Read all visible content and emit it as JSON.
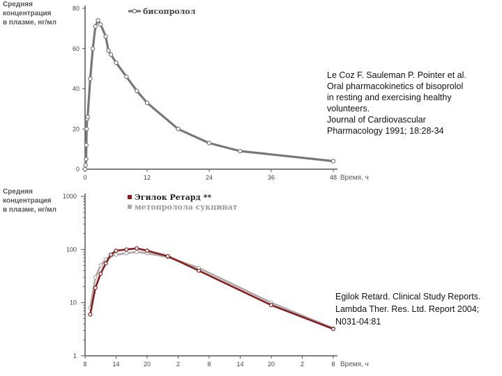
{
  "chart_data": [
    {
      "type": "line",
      "ylabel": [
        "Средняя",
        "концентрация",
        "в плазме, нг/мл"
      ],
      "xlabel": "Время, ч",
      "x_ticks": [
        0,
        12,
        24,
        36,
        48
      ],
      "y_ticks": [
        0,
        20,
        40,
        60,
        80
      ],
      "xlim": [
        0,
        48
      ],
      "ylim": [
        0,
        80
      ],
      "series": [
        {
          "name": "бисопролол",
          "color": "#777777",
          "x": [
            0,
            0.1,
            0.2,
            0.25,
            0.3,
            0.4,
            0.5,
            1,
            1.5,
            2,
            2.5,
            3,
            4,
            4.5,
            5,
            6,
            8,
            10,
            12,
            18,
            24,
            30,
            48
          ],
          "y": [
            0,
            2,
            5,
            12,
            20,
            25,
            26,
            45,
            60,
            71,
            74,
            72,
            66,
            59,
            57,
            53,
            46,
            39,
            33,
            20,
            13,
            9,
            4
          ]
        }
      ]
    },
    {
      "type": "line",
      "ylabel": [
        "Средняя",
        "концентрация",
        "в плазме, нг/мл"
      ],
      "xlabel": "Время, ч",
      "yscale": "log",
      "x_ticks": [
        "8",
        "14",
        "20",
        "2",
        "8",
        "14",
        "20",
        "2",
        "8"
      ],
      "y_ticks": [
        1,
        10,
        100,
        1000
      ],
      "xlim": [
        8,
        56
      ],
      "ylim": [
        1,
        1000
      ],
      "series": [
        {
          "name": "Эгилок Ретард **",
          "color": "#8b1a1a",
          "x": [
            9,
            10,
            11,
            12,
            13,
            14,
            16,
            18,
            20,
            24,
            30,
            44,
            56
          ],
          "y": [
            6,
            19,
            35,
            55,
            80,
            95,
            100,
            105,
            95,
            75,
            40,
            9,
            3.2
          ]
        },
        {
          "name": "метопролола сукцинат",
          "color": "#aaaaaa",
          "x": [
            9,
            10,
            11,
            12,
            13,
            14,
            16,
            18,
            20,
            24,
            30,
            44,
            56
          ],
          "y": [
            8,
            30,
            50,
            65,
            75,
            80,
            85,
            90,
            85,
            72,
            45,
            10,
            3.3
          ]
        }
      ]
    }
  ],
  "citations": {
    "top": [
      "Le Coz F. Sauleman P. Pointer et al.",
      "Oral pharmacokinetics of bisoprolol",
      "in resting and exercising healthy",
      "volunteers.",
      "Journal of Cardiovascular",
      "Pharmacology 1991; 18:28-34"
    ],
    "bottom": [
      "Egilok Retard. Clinical Study Reports.",
      "Lambda Ther. Res. Ltd. Report 2004;",
      "N031-04:81"
    ]
  }
}
